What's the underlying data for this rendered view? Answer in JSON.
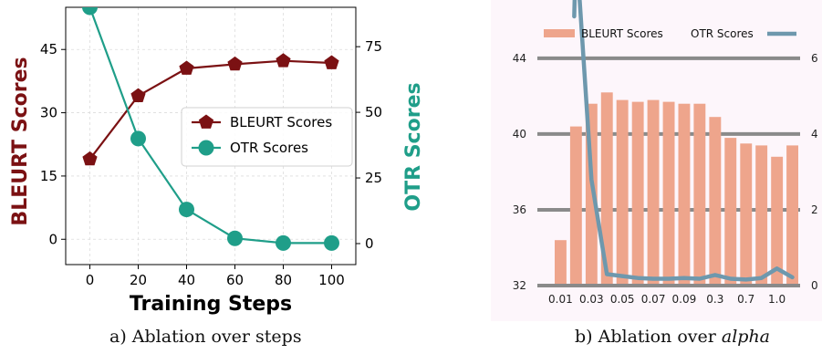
{
  "captions": {
    "a": "a) Ablation over steps",
    "b_prefix": "b) Ablation over ",
    "b_math": "alpha"
  },
  "chart_data": [
    {
      "type": "line",
      "xlabel": "Training Steps",
      "ylabel_left": "BLEURT Scores",
      "ylabel_right": "OTR Scores",
      "x": [
        0,
        20,
        40,
        60,
        80,
        100
      ],
      "xlim": [
        -10,
        110
      ],
      "xticks": [
        "0",
        "20",
        "40",
        "60",
        "80",
        "100"
      ],
      "y_left_lim": [
        -6,
        55
      ],
      "y_left_ticks": [
        "0",
        "15",
        "30",
        "45"
      ],
      "y_right_lim": [
        -8,
        90
      ],
      "y_right_ticks": [
        "0",
        "25",
        "50",
        "75"
      ],
      "grid": true,
      "legend_position": "center-right",
      "series": [
        {
          "name": "BLEURT Scores",
          "axis": "left",
          "marker": "pentagon",
          "color": "#7b1113",
          "values": [
            19,
            34,
            40.5,
            41.5,
            42.3,
            41.8
          ]
        },
        {
          "name": "OTR Scores",
          "axis": "right",
          "marker": "circle",
          "color": "#1f9e89",
          "values": [
            90,
            40,
            13,
            2,
            0.2,
            0.2
          ]
        }
      ]
    },
    {
      "type": "bar",
      "categories": [
        "",
        "0.01",
        "",
        "0.03",
        "",
        "0.05",
        "",
        "0.07",
        "",
        "0.09",
        "",
        "0.3",
        "",
        "0.7",
        "",
        "1.0",
        ""
      ],
      "y_left_lim": [
        32,
        46.5
      ],
      "y_left_ticks": [
        "32",
        "36",
        "40",
        "44"
      ],
      "y_right_ticks": [
        "0",
        "2",
        "4",
        "6"
      ],
      "y_right_lim": [
        0,
        6
      ],
      "legend_position": "top",
      "series": [
        {
          "name": "BLEURT Scores",
          "kind": "bar",
          "axis": "left",
          "color": "#eea58c",
          "values": [
            32,
            34.4,
            40.4,
            41.6,
            42.2,
            41.8,
            41.7,
            41.8,
            41.7,
            41.6,
            41.6,
            40.9,
            39.8,
            39.5,
            39.4,
            38.8,
            39.4
          ]
        },
        {
          "name": "OTR Scores",
          "kind": "line",
          "axis": "right",
          "color": "#6e98ad",
          "values": [
            null,
            null,
            9,
            2.8,
            0.3,
            0.25,
            0.2,
            0.18,
            0.18,
            0.2,
            0.18,
            0.28,
            0.18,
            0.16,
            0.2,
            0.45,
            0.22
          ]
        }
      ]
    }
  ]
}
